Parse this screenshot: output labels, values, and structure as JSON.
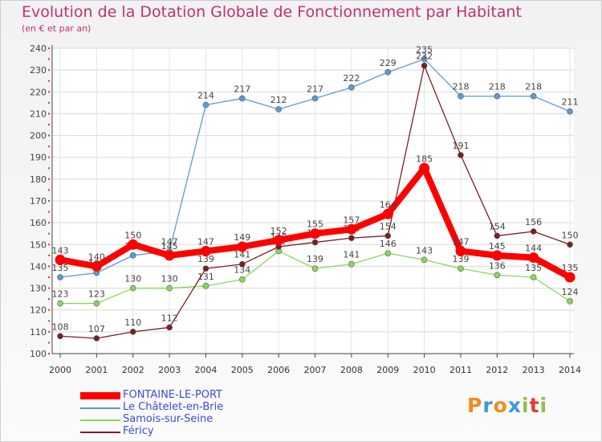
{
  "title": "Evolution de la Dotation Globale de Fonctionnement par Habitant",
  "subtitle": "(en € et par an)",
  "chart_data": {
    "type": "line",
    "categories": [
      "2000",
      "2001",
      "2002",
      "2003",
      "2004",
      "2005",
      "2006",
      "2007",
      "2008",
      "2009",
      "2010",
      "2011",
      "2012",
      "2013",
      "2014"
    ],
    "ylim": [
      100,
      240
    ],
    "yticks": [
      100,
      110,
      120,
      130,
      140,
      150,
      160,
      170,
      180,
      190,
      200,
      210,
      220,
      230,
      240
    ],
    "grid": true,
    "legend_position": "bottom-left",
    "series": [
      {
        "name": "Le Châtelet-en-Brie",
        "color": "#5b9bd5",
        "values": [
          135,
          137,
          145,
          147,
          214,
          217,
          212,
          217,
          222,
          229,
          235,
          218,
          218,
          218,
          211
        ],
        "labels": [
          "135",
          "137",
          "145",
          "147",
          "214",
          "217",
          "212",
          "217",
          "222",
          "229",
          "235",
          "218",
          "218",
          "218",
          "211"
        ]
      },
      {
        "name": "Samois-sur-Seine",
        "color": "#8cd65a",
        "values": [
          123,
          123,
          130,
          130,
          131,
          134,
          147,
          139,
          141,
          146,
          143,
          139,
          136,
          135,
          124
        ],
        "labels": [
          "123",
          "123",
          "130",
          "130",
          "131",
          "134",
          "147",
          "139",
          "141",
          "146",
          "143",
          "139",
          "136",
          "135",
          "124"
        ]
      },
      {
        "name": "Féricy",
        "color": "#7a1f24",
        "values": [
          108,
          107,
          110,
          112,
          139,
          141,
          149,
          151,
          153,
          154,
          232,
          191,
          154,
          156,
          150
        ],
        "labels": [
          "108",
          "107",
          "110",
          "112",
          "139",
          "141",
          "149",
          "151",
          "153",
          "154",
          "232",
          "191",
          "154",
          "156",
          "150"
        ]
      },
      {
        "name": "FONTAINE-LE-PORT",
        "color": "#ff0000",
        "values": [
          143,
          140,
          150,
          145,
          147,
          149,
          152,
          155,
          157,
          164,
          185,
          147,
          145,
          144,
          135
        ],
        "labels": [
          "143",
          "140",
          "150",
          "145",
          "147",
          "149",
          "152",
          "155",
          "157",
          "164",
          "185",
          "147",
          "145",
          "144",
          "135"
        ]
      }
    ],
    "legend": [
      {
        "name": "FONTAINE-LE-PORT",
        "color": "#ff0000",
        "text_color": "#3b4bd8"
      },
      {
        "name": "Le Châtelet-en-Brie",
        "color": "#5b9bd5",
        "text_color": "#3b4bd8"
      },
      {
        "name": "Samois-sur-Seine",
        "color": "#8cd65a",
        "text_color": "#3b4bd8"
      },
      {
        "name": "Féricy",
        "color": "#7a1f24",
        "text_color": "#3b4bd8"
      }
    ]
  },
  "logo": {
    "letters": [
      "P",
      "r",
      "o",
      "x",
      "i",
      "t",
      "i"
    ],
    "colors": [
      "#f28a1a",
      "#3a9ad9",
      "#f28a1a",
      "#3a9ad9",
      "#8bc34a",
      "#e53935",
      "#8bc34a"
    ]
  }
}
